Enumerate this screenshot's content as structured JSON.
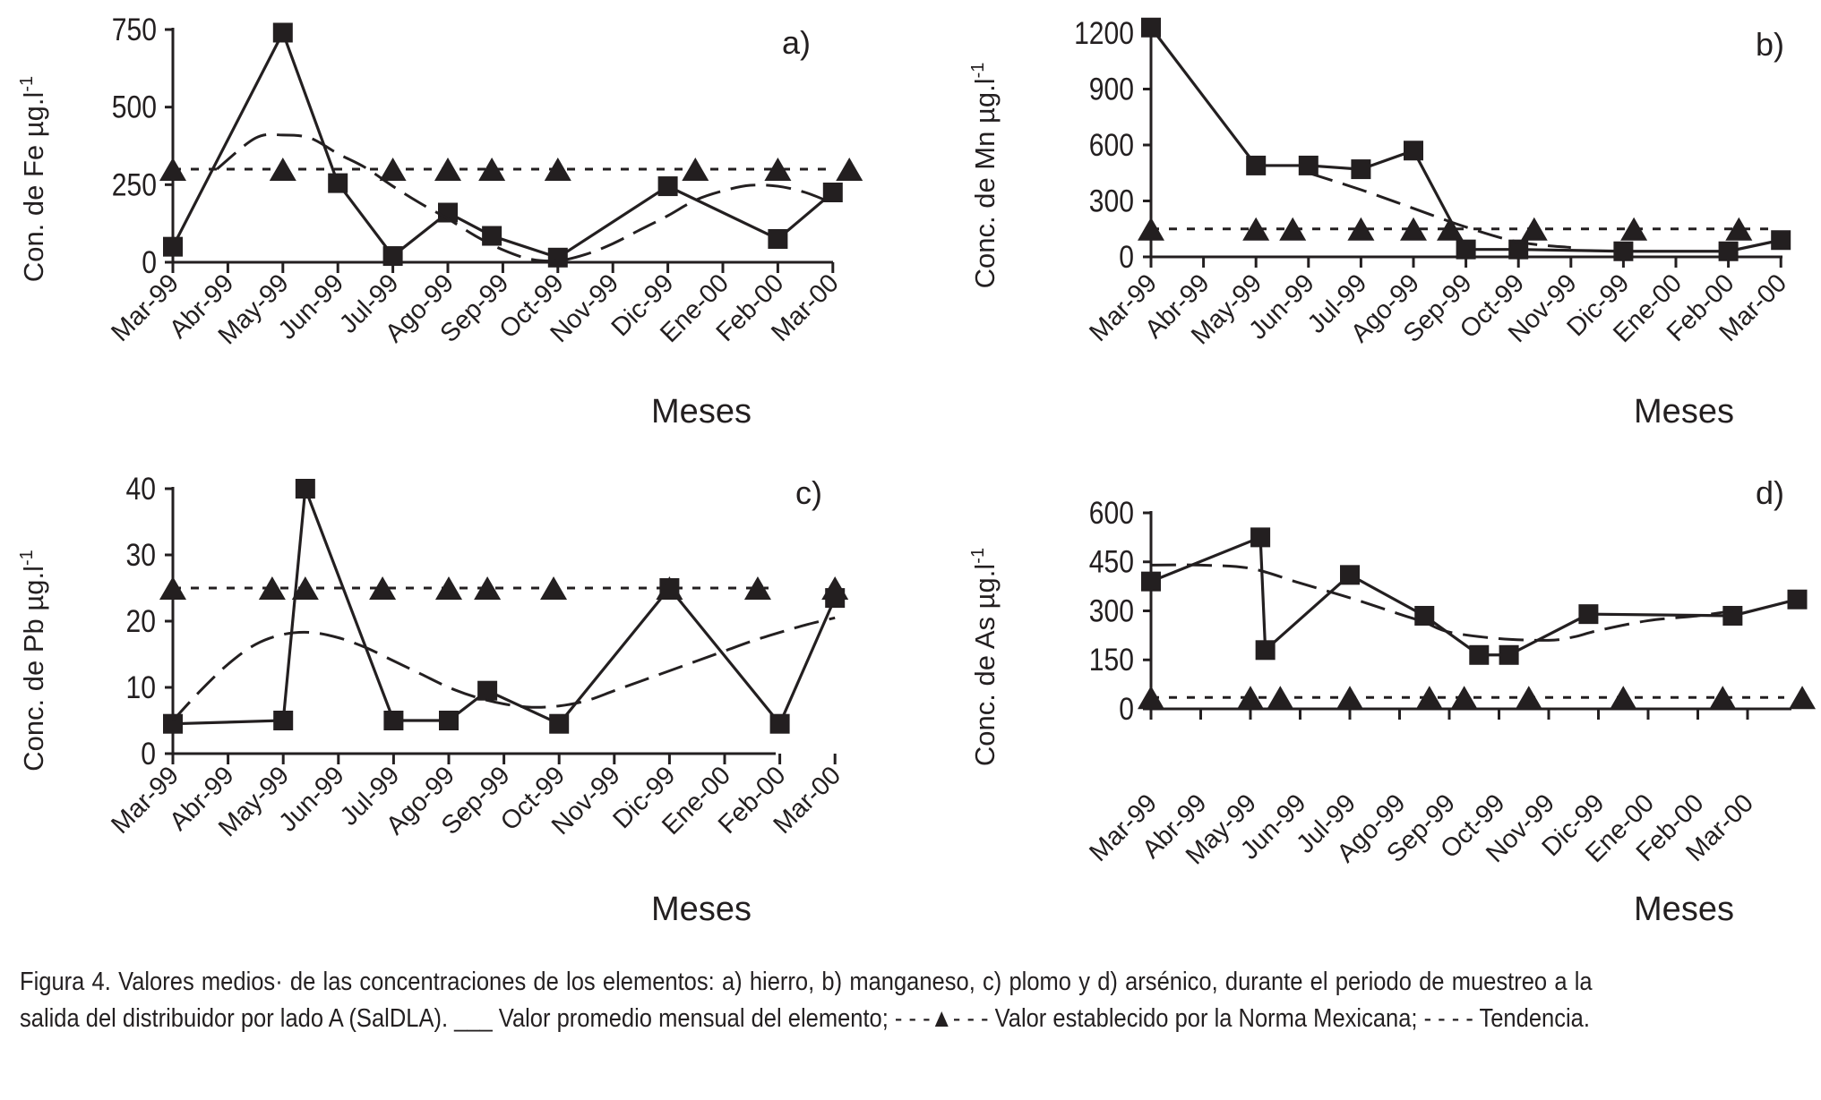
{
  "figure": {
    "caption": "Figura 4. Valores medios· de las concentraciones de los elementos: a) hierro, b) manganeso, c) plomo y d) arsénico, durante el periodo de muestreo a la salida del distribuidor por lado A (SalDLA). ___ Valor promedio mensual del elemento; - - -▲- - - Valor establecido por la Norma Mexicana; - - - - Tendencia."
  },
  "chart_data": [
    {
      "id": "a",
      "type": "line",
      "panel_label": "a)",
      "ylabel": "Con. de Fe µg.l",
      "ylabel_sup": "-1",
      "xlabel": "Meses",
      "ylim": [
        0,
        750
      ],
      "yticks": [
        0,
        250,
        500,
        750
      ],
      "ytick_labels": [
        "0",
        "250",
        "500",
        "750"
      ],
      "categories": [
        "Mar-99",
        "Abr-99",
        "May-99",
        "Jun-99",
        "Jul-99",
        "Ago-99",
        "Sep-99",
        "Oct-99",
        "Nov-99",
        "Dic-99",
        "Ene-00",
        "Feb-00",
        "Mar-00"
      ],
      "series": [
        {
          "name": "Valor promedio mensual",
          "style": "solid-square",
          "x": [
            0,
            2,
            3,
            4,
            5,
            5.8,
            7,
            9,
            11,
            12
          ],
          "y": [
            50,
            740,
            255,
            20,
            160,
            85,
            15,
            245,
            75,
            225
          ]
        },
        {
          "name": "Norma Mexicana",
          "style": "dotted-triangle",
          "x": [
            0,
            2,
            4,
            5,
            5.8,
            7,
            9.5,
            11,
            12.3
          ],
          "y": [
            300,
            300,
            300,
            300,
            300,
            300,
            300,
            300,
            300
          ]
        },
        {
          "name": "Tendencia",
          "style": "dashed",
          "x": [
            0.8,
            1.5,
            2,
            2.5,
            3,
            3.5,
            4,
            4.5,
            5,
            5.5,
            6,
            6.5,
            7,
            7.5,
            8,
            8.5,
            9,
            9.5,
            10,
            10.5,
            11,
            11.5,
            12
          ],
          "y": [
            300,
            400,
            410,
            400,
            350,
            305,
            245,
            190,
            140,
            85,
            40,
            10,
            5,
            25,
            60,
            105,
            150,
            200,
            230,
            248,
            245,
            225,
            190
          ]
        }
      ]
    },
    {
      "id": "b",
      "type": "line",
      "panel_label": "b)",
      "ylabel": "Conc. de Mn µg.l",
      "ylabel_sup": "-1",
      "xlabel": "Meses",
      "ylim": [
        0,
        1200
      ],
      "yticks": [
        0,
        300,
        600,
        900,
        1200
      ],
      "ytick_labels": [
        "0",
        "300",
        "600",
        "900",
        "1200"
      ],
      "categories": [
        "Mar-99",
        "Abr-99",
        "May-99",
        "Jun-99",
        "Jul-99",
        "Ago-99",
        "Sep-99",
        "Oct-99",
        "Nov-99",
        "Dic-99",
        "Ene-00",
        "Feb-00",
        "Mar-00"
      ],
      "series": [
        {
          "name": "Valor promedio mensual",
          "style": "solid-square",
          "x": [
            0,
            2,
            3,
            4,
            5,
            6,
            7,
            9,
            11,
            12
          ],
          "y": [
            1230,
            490,
            490,
            470,
            570,
            40,
            40,
            30,
            30,
            90
          ]
        },
        {
          "name": "Norma Mexicana",
          "style": "dotted-triangle",
          "x": [
            0,
            2,
            2.7,
            4,
            5,
            5.7,
            7.3,
            9.2,
            11.2
          ],
          "y": [
            150,
            150,
            150,
            150,
            150,
            150,
            150,
            150,
            150
          ]
        },
        {
          "name": "Tendencia",
          "style": "dashed",
          "x": [
            3,
            4,
            5,
            6,
            7,
            8
          ],
          "y": [
            450,
            360,
            260,
            160,
            80,
            50
          ]
        }
      ]
    },
    {
      "id": "c",
      "type": "line",
      "panel_label": "c)",
      "ylabel": "Conc. de Pb µg.l",
      "ylabel_sup": "-1",
      "xlabel": "Meses",
      "ylim": [
        0,
        40
      ],
      "yticks": [
        0,
        10,
        20,
        30,
        40
      ],
      "ytick_labels": [
        "0",
        "10",
        "20",
        "30",
        "40"
      ],
      "categories": [
        "Mar-99",
        "Abr-99",
        "May-99",
        "Jun-99",
        "Jul-99",
        "Ago-99",
        "Sep-99",
        "Oct-99",
        "Nov-99",
        "Dic-99",
        "Ene-00",
        "Feb-00",
        "Mar-00"
      ],
      "series": [
        {
          "name": "Valor promedio mensual",
          "style": "solid-square",
          "x": [
            0,
            2,
            2.4,
            4,
            5,
            5.7,
            7,
            9,
            11,
            12
          ],
          "y": [
            4.5,
            5,
            40,
            5,
            5,
            9.5,
            4.5,
            25,
            4.5,
            23.5
          ]
        },
        {
          "name": "Norma Mexicana",
          "style": "dotted-triangle",
          "x": [
            0,
            1.8,
            2.4,
            3.8,
            5,
            5.7,
            6.9,
            9,
            10.6,
            12
          ],
          "y": [
            25,
            25,
            25,
            25,
            25,
            25,
            25,
            25,
            25,
            25
          ]
        },
        {
          "name": "Tendencia",
          "style": "dashed",
          "x": [
            0,
            0.5,
            1,
            1.5,
            2,
            2.5,
            3,
            3.5,
            4,
            4.5,
            5,
            5.5,
            6,
            6.5,
            7,
            7.5,
            8,
            8.5,
            9,
            9.5,
            10,
            10.5,
            11,
            11.5,
            12
          ],
          "y": [
            5,
            9.5,
            13.5,
            16.5,
            18,
            18.3,
            17.5,
            16,
            14,
            12,
            10,
            8.5,
            7.5,
            7,
            7.2,
            8,
            9.5,
            11,
            12.5,
            14,
            15.5,
            17,
            18.3,
            19.5,
            20.5
          ]
        }
      ]
    },
    {
      "id": "d",
      "type": "line",
      "panel_label": "d)",
      "ylabel": "Conc. de As µg.l",
      "ylabel_sup": "-1",
      "xlabel": "Meses",
      "ylim": [
        0,
        600
      ],
      "yticks": [
        0,
        150,
        300,
        450,
        600
      ],
      "ytick_labels": [
        "0",
        "150",
        "300",
        "450",
        "600"
      ],
      "categories": [
        "Mar-99",
        "Abr-99",
        "May-99",
        "Jun-99",
        "Jul-99",
        "Ago-99",
        "Sep-99",
        "Oct-99",
        "Nov-99",
        "Dic-99",
        "Ene-00",
        "Feb-00",
        "Mar-00"
      ],
      "series": [
        {
          "name": "Valor promedio mensual",
          "style": "solid-square",
          "x": [
            0,
            2.2,
            2.3,
            4,
            5.5,
            6.6,
            7.2,
            8.8,
            11.7,
            13
          ],
          "y": [
            390,
            525,
            180,
            410,
            285,
            165,
            165,
            290,
            285,
            335
          ]
        },
        {
          "name": "Norma Mexicana",
          "style": "dotted-triangle",
          "x": [
            0,
            2,
            2.6,
            4,
            5.6,
            6.3,
            7.6,
            9.5,
            11.5,
            13.1
          ],
          "y": [
            35,
            35,
            35,
            35,
            35,
            35,
            35,
            35,
            35,
            35
          ]
        },
        {
          "name": "Tendencia",
          "style": "dashed",
          "x": [
            0,
            1,
            2,
            3,
            4,
            5,
            5.5,
            6,
            7,
            8,
            8.5,
            9,
            10,
            11,
            11.7
          ],
          "y": [
            440,
            440,
            430,
            385,
            340,
            290,
            265,
            235,
            215,
            210,
            220,
            240,
            270,
            285,
            300
          ]
        }
      ]
    }
  ]
}
